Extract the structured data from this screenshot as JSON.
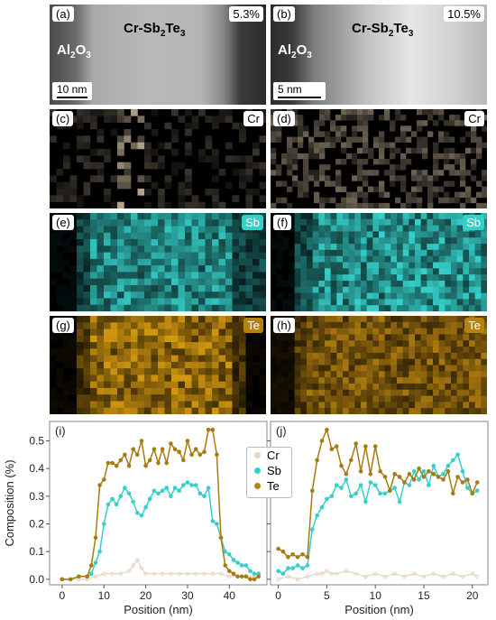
{
  "panels": {
    "a": {
      "label": "(a)",
      "material_main": "Cr-Sb",
      "material_sub1": "2",
      "material_mid": "Te",
      "material_sub2": "3",
      "percent": "5.3%",
      "substrate_main": "Al",
      "substrate_sub1": "2",
      "substrate_mid": "O",
      "substrate_sub2": "3",
      "scale": "10 nm"
    },
    "b": {
      "label": "(b)",
      "material_main": "Cr-Sb",
      "material_sub1": "2",
      "material_mid": "Te",
      "material_sub2": "3",
      "percent": "10.5%",
      "substrate_main": "Al",
      "substrate_sub1": "2",
      "substrate_mid": "O",
      "substrate_sub2": "3",
      "scale": "5 nm"
    },
    "c": {
      "label": "(c)",
      "element": "Cr"
    },
    "d": {
      "label": "(d)",
      "element": "Cr"
    },
    "e": {
      "label": "(e)",
      "element": "Sb"
    },
    "f": {
      "label": "(f)",
      "element": "Sb"
    },
    "g": {
      "label": "(g)",
      "element": "Te"
    },
    "h": {
      "label": "(h)",
      "element": "Te"
    }
  },
  "colors": {
    "Cr": "#d8c2a6",
    "Sb": "#36cfc9",
    "Te": "#b5830f",
    "frame": "#888888"
  },
  "legend": {
    "cr": "Cr",
    "sb": "Sb",
    "te": "Te"
  },
  "chart_data": [
    {
      "type": "line",
      "panel_label": "(i)",
      "xlabel": "Position (nm)",
      "ylabel": "Composition (%)",
      "xlim": [
        -3,
        49
      ],
      "ylim": [
        -0.02,
        0.57
      ],
      "xticks": [
        0,
        10,
        20,
        30,
        40
      ],
      "yticks": [
        0.0,
        0.1,
        0.2,
        0.3,
        0.4,
        0.5
      ],
      "ytick_labels": [
        "0.0",
        "0.1",
        "0.2",
        "0.3",
        "0.4",
        "0.5"
      ],
      "series": [
        {
          "name": "Cr",
          "x": [
            0,
            2,
            4,
            6,
            8,
            10,
            12,
            14,
            16,
            17,
            18,
            19,
            20,
            22,
            24,
            26,
            28,
            30,
            32,
            34,
            36,
            38,
            40,
            42,
            44,
            46,
            47
          ],
          "y": [
            0.0,
            0.0,
            0.0,
            0.0,
            0.01,
            0.02,
            0.02,
            0.02,
            0.03,
            0.05,
            0.07,
            0.04,
            0.02,
            0.02,
            0.02,
            0.02,
            0.02,
            0.02,
            0.02,
            0.02,
            0.02,
            0.02,
            0.01,
            0.01,
            0.01,
            0.01,
            0.01
          ]
        },
        {
          "name": "Sb",
          "x": [
            0,
            2,
            4,
            6,
            7,
            8,
            9,
            10,
            11,
            12,
            13,
            14,
            15,
            16,
            17,
            18,
            19,
            20,
            21,
            22,
            23,
            24,
            25,
            26,
            27,
            28,
            29,
            30,
            31,
            32,
            33,
            34,
            35,
            36,
            37,
            38,
            39,
            40,
            41,
            42,
            43,
            44,
            45,
            46,
            47
          ],
          "y": [
            0.0,
            0.0,
            0.01,
            0.01,
            0.02,
            0.06,
            0.1,
            0.2,
            0.27,
            0.29,
            0.27,
            0.3,
            0.33,
            0.31,
            0.28,
            0.24,
            0.23,
            0.26,
            0.29,
            0.32,
            0.31,
            0.32,
            0.33,
            0.3,
            0.33,
            0.32,
            0.34,
            0.35,
            0.34,
            0.34,
            0.31,
            0.3,
            0.33,
            0.21,
            0.2,
            0.15,
            0.1,
            0.09,
            0.07,
            0.06,
            0.05,
            0.05,
            0.03,
            0.02,
            0.02
          ]
        },
        {
          "name": "Te",
          "x": [
            0,
            2,
            4,
            6,
            7,
            8,
            9,
            10,
            11,
            12,
            13,
            14,
            15,
            16,
            17,
            18,
            19,
            20,
            21,
            22,
            23,
            24,
            25,
            26,
            27,
            28,
            29,
            30,
            31,
            32,
            33,
            34,
            35,
            36,
            37,
            38,
            39,
            40,
            41,
            42,
            43,
            44,
            45,
            46,
            47
          ],
          "y": [
            0.0,
            0.0,
            0.01,
            0.01,
            0.05,
            0.15,
            0.34,
            0.36,
            0.42,
            0.42,
            0.41,
            0.43,
            0.45,
            0.41,
            0.47,
            0.45,
            0.5,
            0.41,
            0.43,
            0.47,
            0.42,
            0.47,
            0.42,
            0.49,
            0.47,
            0.46,
            0.43,
            0.5,
            0.45,
            0.47,
            0.45,
            0.46,
            0.54,
            0.54,
            0.45,
            0.15,
            0.05,
            0.03,
            0.02,
            0.01,
            0.01,
            0.01,
            0.0,
            0.0,
            0.01
          ]
        }
      ]
    },
    {
      "type": "line",
      "panel_label": "(j)",
      "xlabel": "Position (nm)",
      "ylabel": "",
      "xlim": [
        -0.8,
        21.6
      ],
      "ylim": [
        -0.02,
        0.57
      ],
      "xticks": [
        0,
        5,
        10,
        15,
        20
      ],
      "yticks": [
        0.0,
        0.1,
        0.2,
        0.3,
        0.4,
        0.5
      ],
      "series": [
        {
          "name": "Cr",
          "x": [
            0,
            1,
            2,
            3,
            4,
            4.5,
            5,
            5.5,
            6,
            7,
            8,
            9,
            10,
            11,
            12,
            13,
            14,
            15,
            16,
            17,
            18,
            19,
            20,
            20.5
          ],
          "y": [
            0.0,
            0.01,
            0.0,
            0.01,
            0.02,
            0.02,
            0.03,
            0.02,
            0.02,
            0.03,
            0.02,
            0.01,
            0.02,
            0.01,
            0.02,
            0.01,
            0.02,
            0.01,
            0.02,
            0.01,
            0.02,
            0.01,
            0.02,
            0.01
          ]
        },
        {
          "name": "Sb",
          "x": [
            0,
            0.5,
            1,
            1.5,
            2,
            2.5,
            3,
            3.5,
            4,
            4.5,
            5,
            5.5,
            6,
            6.5,
            7,
            7.5,
            8,
            8.5,
            9,
            9.5,
            10,
            10.5,
            11,
            11.5,
            12,
            12.5,
            13,
            13.5,
            14,
            14.5,
            15,
            15.5,
            16,
            16.5,
            17,
            17.5,
            18,
            18.5,
            19,
            19.5,
            20,
            20.5
          ],
          "y": [
            0.03,
            0.02,
            0.04,
            0.04,
            0.05,
            0.04,
            0.05,
            0.18,
            0.23,
            0.26,
            0.29,
            0.3,
            0.34,
            0.33,
            0.36,
            0.3,
            0.31,
            0.34,
            0.28,
            0.35,
            0.34,
            0.31,
            0.31,
            0.32,
            0.33,
            0.28,
            0.35,
            0.34,
            0.39,
            0.36,
            0.39,
            0.34,
            0.41,
            0.37,
            0.38,
            0.41,
            0.43,
            0.45,
            0.39,
            0.33,
            0.31,
            0.32
          ]
        },
        {
          "name": "Te",
          "x": [
            0,
            0.5,
            1,
            1.5,
            2,
            2.5,
            3,
            3.5,
            4,
            4.5,
            5,
            5.5,
            6,
            6.5,
            7,
            7.5,
            8,
            8.5,
            9,
            9.5,
            10,
            10.5,
            11,
            11.5,
            12,
            12.5,
            13,
            13.5,
            14,
            14.5,
            15,
            15.5,
            16,
            16.5,
            17,
            17.5,
            18,
            18.5,
            19,
            19.5,
            20,
            20.5
          ],
          "y": [
            0.11,
            0.1,
            0.08,
            0.09,
            0.08,
            0.09,
            0.08,
            0.32,
            0.43,
            0.5,
            0.54,
            0.47,
            0.48,
            0.41,
            0.38,
            0.43,
            0.49,
            0.39,
            0.48,
            0.38,
            0.48,
            0.39,
            0.37,
            0.32,
            0.38,
            0.37,
            0.35,
            0.38,
            0.36,
            0.4,
            0.37,
            0.39,
            0.38,
            0.37,
            0.36,
            0.39,
            0.31,
            0.37,
            0.35,
            0.36,
            0.31,
            0.35
          ]
        }
      ]
    }
  ]
}
